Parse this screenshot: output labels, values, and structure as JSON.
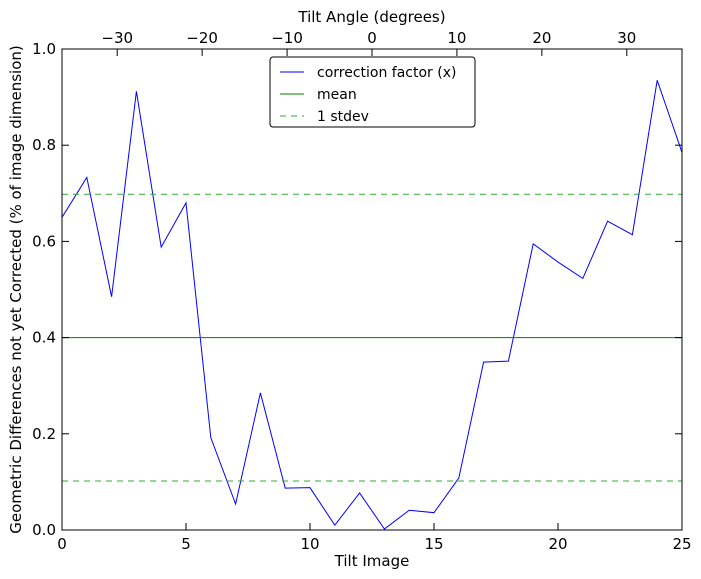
{
  "chart_data": {
    "type": "line",
    "xlabel": "Tilt Image",
    "ylabel": "Geometric Differences not yet Corrected (% of image dimension)",
    "top_xlabel": "Tilt Angle (degrees)",
    "xlim": [
      0,
      25
    ],
    "ylim": [
      0.0,
      1.0
    ],
    "x_ticks": [
      0,
      5,
      10,
      15,
      20,
      25
    ],
    "x_tick_labels": [
      "0",
      "5",
      "10",
      "15",
      "20",
      "25"
    ],
    "y_ticks": [
      0.0,
      0.2,
      0.4,
      0.6,
      0.8,
      1.0
    ],
    "y_tick_labels": [
      "0.0",
      "0.2",
      "0.4",
      "0.6",
      "0.8",
      "1.0"
    ],
    "top_xlim": [
      -36.5,
      36.5
    ],
    "top_x_ticks": [
      -30,
      -20,
      -10,
      0,
      10,
      20,
      30
    ],
    "top_x_tick_labels": [
      "−30",
      "−20",
      "−10",
      "0",
      "10",
      "20",
      "30"
    ],
    "grid": false,
    "legend_position": "top-center",
    "series": [
      {
        "name": "correction factor (x)",
        "style": "solid",
        "color": "#0000ff",
        "x": [
          0,
          1,
          2,
          3,
          4,
          5,
          6,
          7,
          8,
          9,
          10,
          11,
          12,
          13,
          14,
          15,
          16,
          17,
          18,
          19,
          20,
          21,
          22,
          23,
          24,
          25
        ],
        "values": [
          0.65,
          0.733,
          0.485,
          0.912,
          0.588,
          0.68,
          0.192,
          0.054,
          0.285,
          0.087,
          0.088,
          0.01,
          0.077,
          0.002,
          0.041,
          0.036,
          0.108,
          0.349,
          0.351,
          0.595,
          0.557,
          0.523,
          0.642,
          0.614,
          0.935,
          0.785
        ]
      },
      {
        "name": "mean",
        "style": "solid",
        "color": "#008000",
        "x": [
          0,
          25
        ],
        "values": [
          0.4,
          0.4
        ]
      },
      {
        "name": "1 stdev",
        "style": "dashed",
        "color": "#33aa33",
        "x": [
          0,
          25
        ],
        "values": [
          0.698,
          0.698
        ]
      },
      {
        "style": "dashed",
        "color": "#33aa33",
        "x": [
          0,
          25
        ],
        "values": [
          0.102,
          0.102
        ]
      }
    ]
  }
}
